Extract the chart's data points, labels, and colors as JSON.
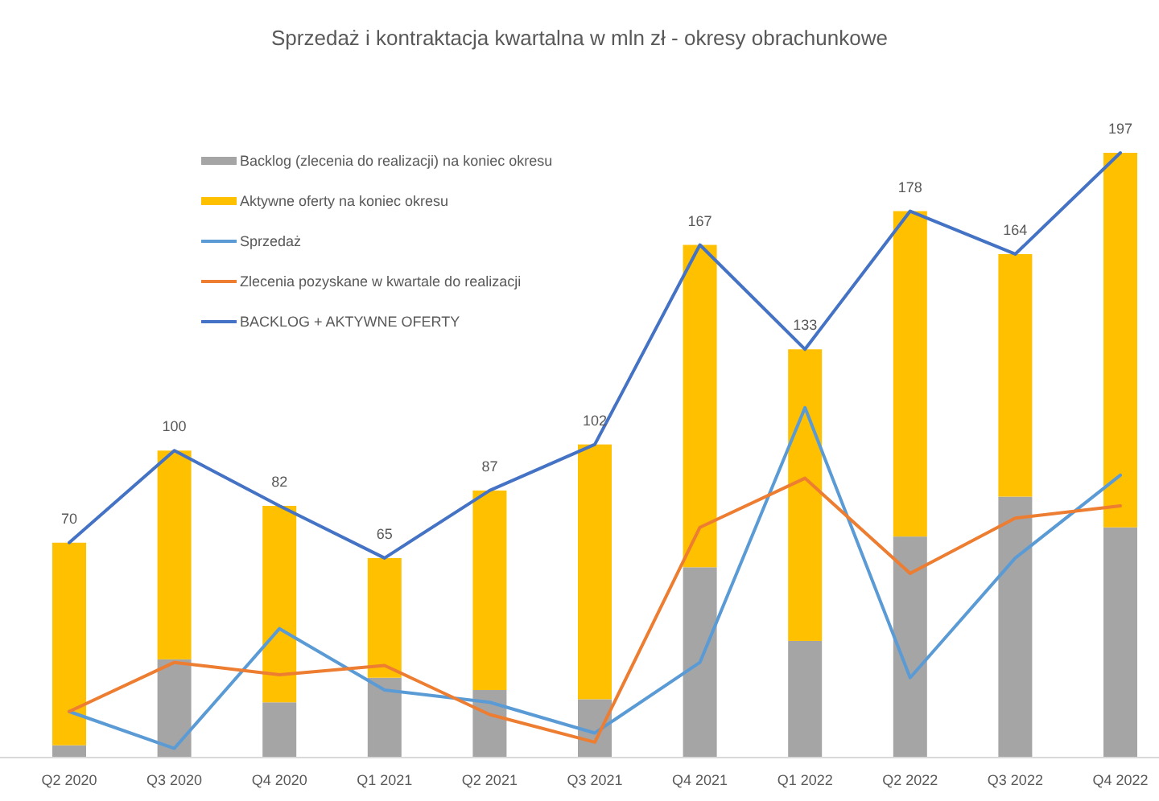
{
  "chart_data": {
    "type": "bar",
    "title": "Sprzedaż i kontraktacja kwartalna w mln zł - okresy obrachunkowe",
    "stacked": true,
    "legend": "left",
    "grid": false,
    "categories": [
      "Q2 2020",
      "Q3 2020",
      "Q4 2020",
      "Q1 2021",
      "Q2 2021",
      "Q3 2021",
      "Q4 2021",
      "Q1 2022",
      "Q2 2022",
      "Q3 2022",
      "Q4 2022"
    ],
    "series": [
      {
        "name": "Backlog (zlecenia do realizacji) na koniec okresu",
        "color": "#a5a5a5",
        "values": [
          4,
          32,
          18,
          26,
          22,
          19,
          62,
          38,
          72,
          85,
          75
        ]
      },
      {
        "name": "Aktywne oferty na koniec okresu",
        "color": "#ffc000",
        "values": [
          66,
          68,
          64,
          39,
          65,
          83,
          105,
          95,
          106,
          79,
          122
        ]
      },
      {
        "name": "Sprzedaż",
        "type": "line",
        "color": "#5b9bd5",
        "values": [
          15,
          3,
          42,
          22,
          18,
          8,
          31,
          114,
          26,
          65,
          92
        ]
      },
      {
        "name": "Zlecenia pozyskane w kwartale do realizacji",
        "type": "line",
        "color": "#ed7d31",
        "values": [
          15,
          31,
          27,
          30,
          14,
          5,
          75,
          91,
          60,
          78,
          82
        ]
      },
      {
        "name": "BACKLOG + AKTYWNE OFERTY",
        "type": "line",
        "color": "#4472c4",
        "values": [
          70,
          100,
          82,
          65,
          87,
          102,
          167,
          133,
          178,
          164,
          197
        ],
        "value_labels": [
          "70",
          "100",
          "82",
          "65",
          "87",
          "102",
          "167",
          "133",
          "178",
          "164",
          "197"
        ]
      }
    ]
  }
}
